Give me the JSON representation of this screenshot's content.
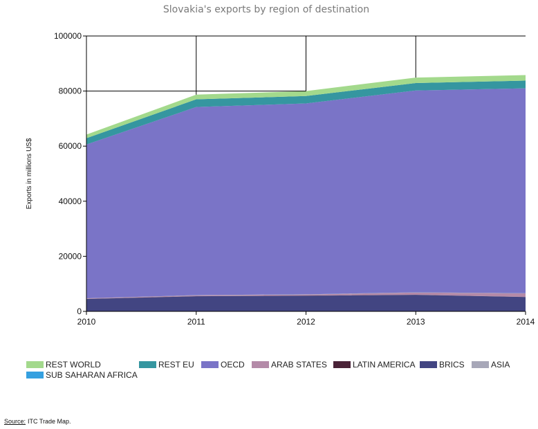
{
  "chart_data": {
    "type": "area",
    "stacked": true,
    "title": "Slovakia's exports by region of destination",
    "ylabel": "Exports in millions US$",
    "xlabel": "",
    "x": [
      "2010",
      "2011",
      "2012",
      "2013",
      "2014"
    ],
    "ylim": [
      0,
      100000
    ],
    "yticks": [
      "0",
      "20000",
      "40000",
      "60000",
      "80000",
      "100000"
    ],
    "grid": true,
    "legend_position": "bottom",
    "series": [
      {
        "name": "BRICS",
        "color": "#424582",
        "values": [
          4500,
          5500,
          5700,
          6000,
          5200
        ]
      },
      {
        "name": "LATIN AMERICA",
        "color": "#4a2237",
        "values": [
          30,
          40,
          40,
          40,
          40
        ]
      },
      {
        "name": "ARAB STATES",
        "color": "#b48aa8",
        "values": [
          200,
          300,
          400,
          800,
          1300
        ]
      },
      {
        "name": "ASIA",
        "color": "#a7a7b8",
        "values": [
          20,
          30,
          30,
          30,
          30
        ]
      },
      {
        "name": "SUB SAHARAN AFRICA",
        "color": "#35a0e0",
        "values": [
          20,
          30,
          30,
          30,
          30
        ]
      },
      {
        "name": "OECD",
        "color": "#7a74c7",
        "values": [
          55830,
          68300,
          69300,
          73300,
          74400
        ]
      },
      {
        "name": "REST EU",
        "color": "#3596a0",
        "values": [
          2300,
          2800,
          2700,
          2700,
          2800
        ]
      },
      {
        "name": "REST WORLD",
        "color": "#a3d98c",
        "values": [
          1300,
          1700,
          1800,
          2000,
          2000
        ]
      }
    ]
  },
  "legend": {
    "row1": [
      {
        "label": "REST WORLD",
        "color": "#a3d98c"
      },
      {
        "label": "REST EU",
        "color": "#3596a0"
      },
      {
        "label": "OECD",
        "color": "#7a74c7"
      },
      {
        "label": "ARAB STATES",
        "color": "#b48aa8"
      },
      {
        "label": "LATIN AMERICA",
        "color": "#4a2237"
      },
      {
        "label": "BRICS",
        "color": "#424582"
      },
      {
        "label": "ASIA",
        "color": "#a7a7b8"
      }
    ],
    "row2": [
      {
        "label": "SUB SAHARAN AFRICA",
        "color": "#35a0e0"
      }
    ]
  },
  "source": {
    "label": "Source:",
    "text": "ITC Trade Map."
  }
}
